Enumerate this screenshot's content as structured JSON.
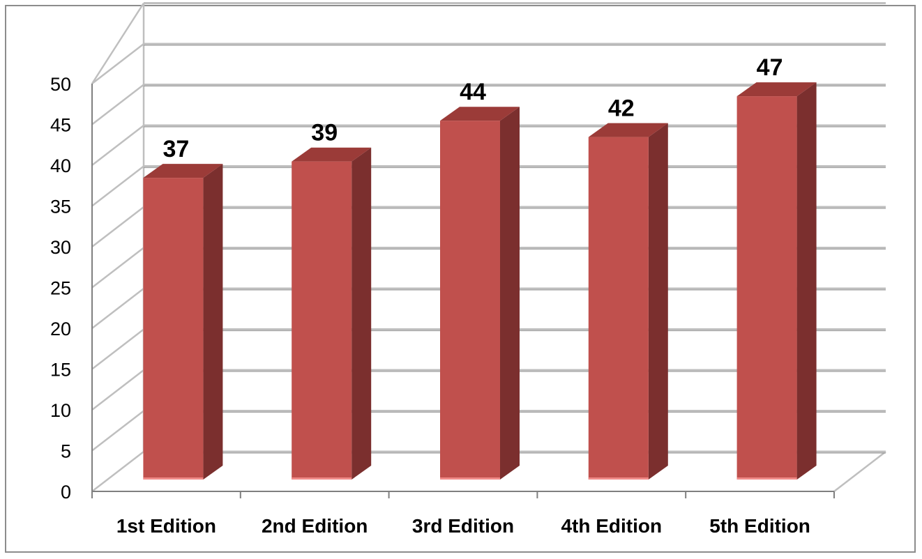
{
  "chart_data": {
    "type": "bar",
    "style": "3d-column",
    "categories": [
      "1st Edition",
      "2nd Edition",
      "3rd Edition",
      "4th Edition",
      "5th Edition"
    ],
    "values": [
      37,
      39,
      44,
      42,
      47
    ],
    "title": "",
    "xlabel": "",
    "ylabel": "",
    "ylim": [
      0,
      50
    ],
    "ytick_step": 5,
    "yticks": [
      "0",
      "5",
      "10",
      "15",
      "20",
      "25",
      "30",
      "35",
      "40",
      "45",
      "50"
    ],
    "data_labels": [
      "37",
      "39",
      "44",
      "42",
      "47"
    ],
    "grid": true,
    "legend": "none",
    "colors": {
      "bar_front": "#c0504d",
      "bar_side": "#7b2f2e",
      "bar_top": "#9b3b38",
      "bar_base": "#f08a88",
      "grid": "#bfbfbf",
      "grid_shadow": "#8a8a8a",
      "axis": "#7f7f7f"
    }
  }
}
